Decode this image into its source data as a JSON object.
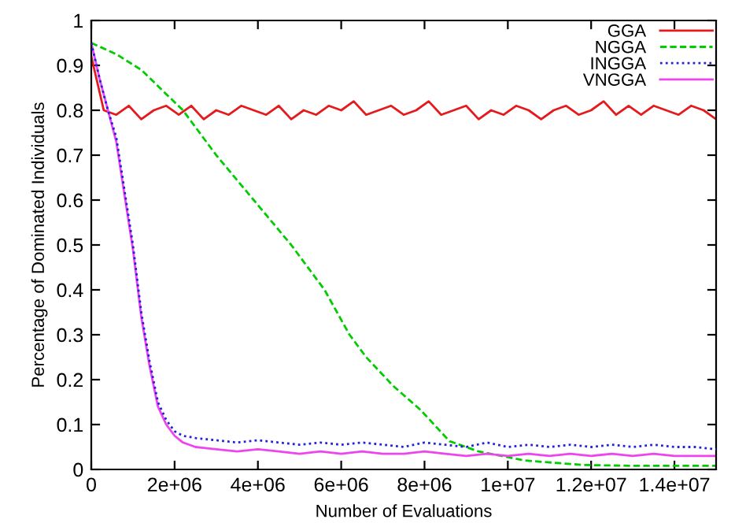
{
  "chart_data": {
    "type": "line",
    "xlabel": "Number of Evaluations",
    "ylabel": "Percentage of Dominated Individuals",
    "xlim": [
      0,
      15000000
    ],
    "ylim": [
      0,
      1
    ],
    "xticks": [
      0,
      {
        "value": 2000000,
        "label": "2e+06"
      },
      {
        "value": 4000000,
        "label": "4e+06"
      },
      {
        "value": 6000000,
        "label": "6e+06"
      },
      {
        "value": 8000000,
        "label": "8e+06"
      },
      {
        "value": 10000000,
        "label": "1e+07"
      },
      {
        "value": 12000000,
        "label": "1.2e+07"
      },
      {
        "value": 14000000,
        "label": "1.4e+07"
      }
    ],
    "yticks": [
      0,
      0.1,
      0.2,
      0.3,
      0.4,
      0.5,
      0.6,
      0.7,
      0.8,
      0.9,
      1
    ],
    "grid": false,
    "legend": "top right",
    "series": [
      {
        "name": "GGA",
        "color": "#e41a1c",
        "line_style": "solid",
        "x": [
          0,
          300000,
          600000,
          900000,
          1200000,
          1500000,
          1800000,
          2100000,
          2400000,
          2700000,
          3000000,
          3300000,
          3600000,
          3900000,
          4200000,
          4500000,
          4800000,
          5100000,
          5400000,
          5700000,
          6000000,
          6300000,
          6600000,
          6900000,
          7200000,
          7500000,
          7800000,
          8100000,
          8400000,
          8700000,
          9000000,
          9300000,
          9600000,
          9900000,
          10200000,
          10500000,
          10800000,
          11100000,
          11400000,
          11700000,
          12000000,
          12300000,
          12600000,
          12900000,
          13200000,
          13500000,
          13800000,
          14100000,
          14400000,
          14700000,
          15000000
        ],
        "values": [
          0.92,
          0.8,
          0.79,
          0.81,
          0.78,
          0.8,
          0.81,
          0.79,
          0.81,
          0.78,
          0.8,
          0.79,
          0.81,
          0.8,
          0.79,
          0.81,
          0.78,
          0.8,
          0.79,
          0.81,
          0.8,
          0.82,
          0.79,
          0.8,
          0.81,
          0.79,
          0.8,
          0.82,
          0.79,
          0.8,
          0.81,
          0.78,
          0.8,
          0.79,
          0.81,
          0.8,
          0.78,
          0.8,
          0.81,
          0.79,
          0.8,
          0.82,
          0.79,
          0.81,
          0.79,
          0.81,
          0.8,
          0.79,
          0.81,
          0.8,
          0.78
        ]
      },
      {
        "name": "NGGA",
        "color": "#00cc00",
        "line_style": "dashed",
        "x": [
          0,
          600000,
          1200000,
          2200000,
          3000000,
          3900000,
          4800000,
          5600000,
          6200000,
          6600000,
          7250000,
          7900000,
          8600000,
          9300000,
          10400000,
          11800000,
          13000000,
          15000000
        ],
        "values": [
          0.95,
          0.925,
          0.89,
          0.8,
          0.7,
          0.6,
          0.5,
          0.4,
          0.3,
          0.25,
          0.186,
          0.133,
          0.063,
          0.04,
          0.02,
          0.01,
          0.008,
          0.008
        ]
      },
      {
        "name": "INGGA",
        "color": "#2222dd",
        "line_style": "dotted",
        "x": [
          0,
          200000,
          400000,
          600000,
          800000,
          1000000,
          1200000,
          1400000,
          1600000,
          1800000,
          2000000,
          2200000,
          2500000,
          3000000,
          3500000,
          4000000,
          4500000,
          5000000,
          5500000,
          6000000,
          6500000,
          7000000,
          7500000,
          8000000,
          8500000,
          9000000,
          9500000,
          10000000,
          10500000,
          11000000,
          11500000,
          12000000,
          12500000,
          13000000,
          13500000,
          14000000,
          14500000,
          15000000
        ],
        "values": [
          0.95,
          0.87,
          0.8,
          0.74,
          0.62,
          0.5,
          0.35,
          0.24,
          0.15,
          0.11,
          0.085,
          0.075,
          0.07,
          0.065,
          0.06,
          0.065,
          0.06,
          0.055,
          0.06,
          0.055,
          0.06,
          0.055,
          0.05,
          0.06,
          0.055,
          0.05,
          0.06,
          0.05,
          0.055,
          0.05,
          0.055,
          0.05,
          0.055,
          0.05,
          0.055,
          0.05,
          0.05,
          0.045
        ]
      },
      {
        "name": "VNGGA",
        "color": "#ee44ee",
        "line_style": "solid",
        "x": [
          0,
          200000,
          400000,
          600000,
          800000,
          1000000,
          1200000,
          1400000,
          1600000,
          1800000,
          2000000,
          2200000,
          2500000,
          3000000,
          3500000,
          4000000,
          4500000,
          5000000,
          5500000,
          6000000,
          6500000,
          7000000,
          7500000,
          8000000,
          8500000,
          9000000,
          9500000,
          10000000,
          10500000,
          11000000,
          11500000,
          12000000,
          12500000,
          13000000,
          13500000,
          14000000,
          14500000,
          15000000
        ],
        "values": [
          0.95,
          0.87,
          0.8,
          0.73,
          0.61,
          0.49,
          0.34,
          0.23,
          0.14,
          0.1,
          0.075,
          0.06,
          0.05,
          0.045,
          0.04,
          0.045,
          0.04,
          0.035,
          0.04,
          0.035,
          0.04,
          0.035,
          0.035,
          0.04,
          0.035,
          0.03,
          0.035,
          0.03,
          0.035,
          0.03,
          0.035,
          0.03,
          0.035,
          0.03,
          0.035,
          0.03,
          0.03,
          0.03
        ]
      }
    ]
  }
}
